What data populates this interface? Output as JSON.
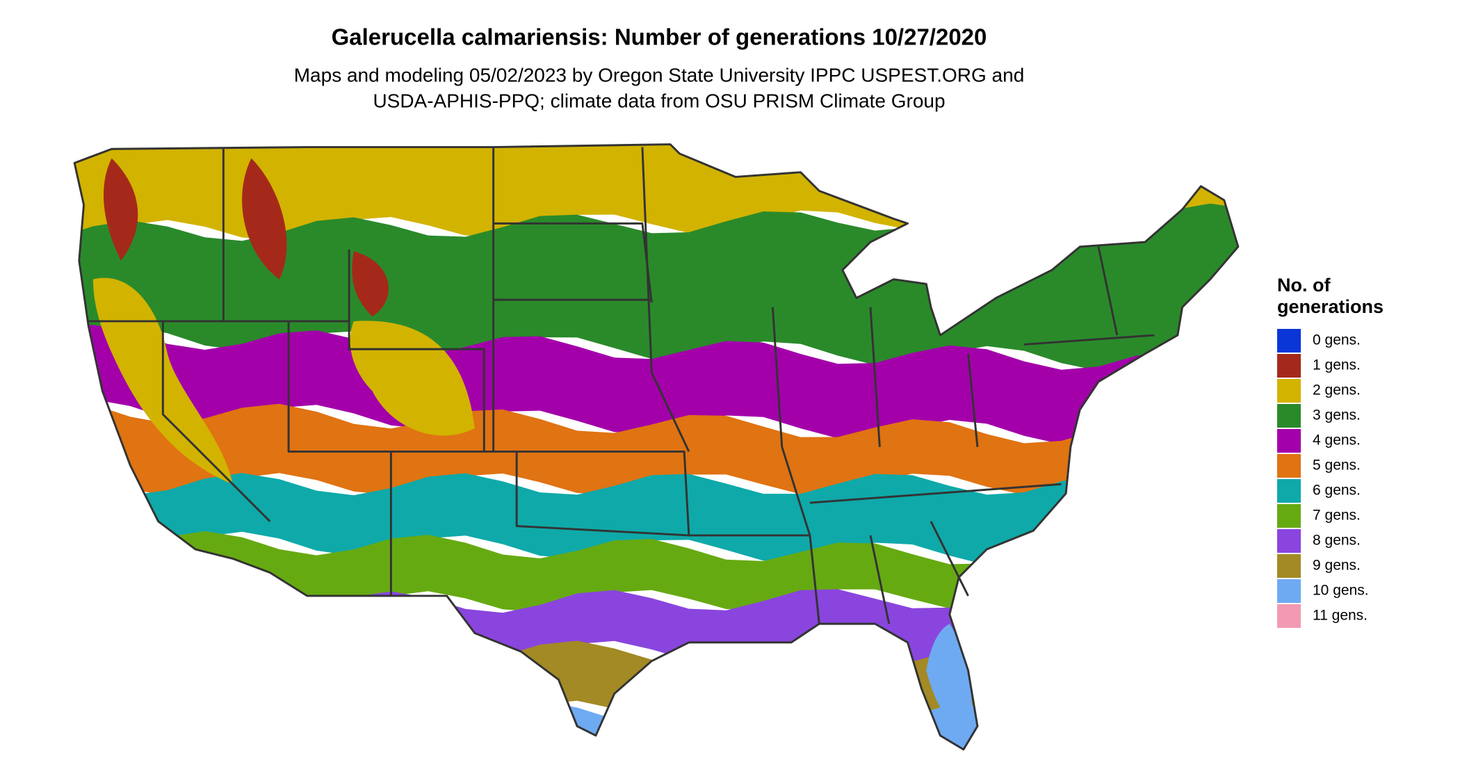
{
  "title": "Galerucella calmariensis: Number of generations 10/27/2020",
  "subtitle": [
    "Maps and modeling 05/02/2023 by Oregon State University IPPC USPEST.ORG and",
    "USDA-APHIS-PPQ; climate data from OSU PRISM Climate Group"
  ],
  "legend": {
    "title": [
      "No. of",
      "generations"
    ],
    "items": [
      {
        "label": "0 gens.",
        "color": "#0a36d8"
      },
      {
        "label": "1 gens.",
        "color": "#a5291a"
      },
      {
        "label": "2 gens.",
        "color": "#d2b300"
      },
      {
        "label": "3 gens.",
        "color": "#2a8a2a"
      },
      {
        "label": "4 gens.",
        "color": "#a300aa"
      },
      {
        "label": "5 gens.",
        "color": "#e07312"
      },
      {
        "label": "6 gens.",
        "color": "#0fa9a9"
      },
      {
        "label": "7 gens.",
        "color": "#66aa12"
      },
      {
        "label": "8 gens.",
        "color": "#8a45de"
      },
      {
        "label": "9 gens.",
        "color": "#a38a24"
      },
      {
        "label": "10 gens.",
        "color": "#6eaaf2"
      },
      {
        "label": "11 gens.",
        "color": "#f19ab2"
      }
    ]
  }
}
